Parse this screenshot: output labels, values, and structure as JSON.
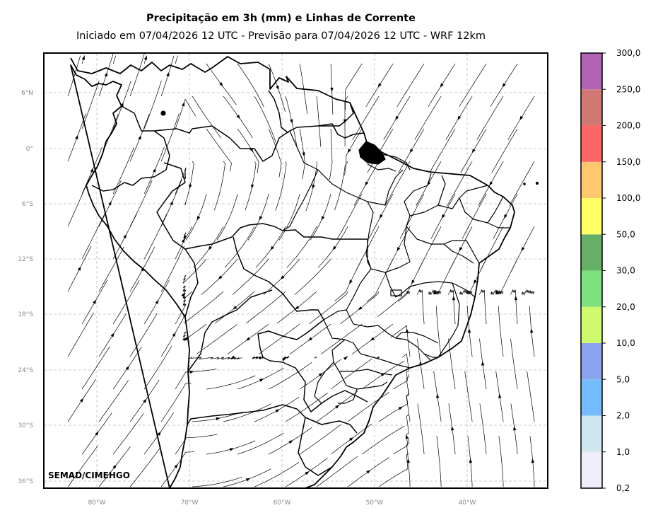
{
  "title": "Precipitação em 3h (mm) e Linhas de Corrente",
  "subtitle": "Iniciado em 07/04/2026 12 UTC - Previsão para 07/04/2026 12 UTC - WRF 12km",
  "credit": "SEMAD/CIMEHGO",
  "lat_labels": [
    "6°N",
    "0°",
    "6°S",
    "12°S",
    "18°S",
    "24°S",
    "30°S",
    "36°S"
  ],
  "lon_labels": [
    "80°W",
    "70°W",
    "60°W",
    "50°W",
    "40°W"
  ],
  "colorbar": {
    "labels": [
      "0,2",
      "1,0",
      "2,0",
      "5,0",
      "10,0",
      "20,0",
      "30,0",
      "50,0",
      "100,0",
      "150,0",
      "200,0",
      "250,0",
      "300,0"
    ],
    "colors": [
      "#eeeef8",
      "#d0e6ee",
      "#74bcff",
      "#8aa4ee",
      "#d0fa6e",
      "#7ee07e",
      "#66b066",
      "#ffff66",
      "#ffc870",
      "#ff6666",
      "#d27874",
      "#b462b4"
    ]
  }
}
